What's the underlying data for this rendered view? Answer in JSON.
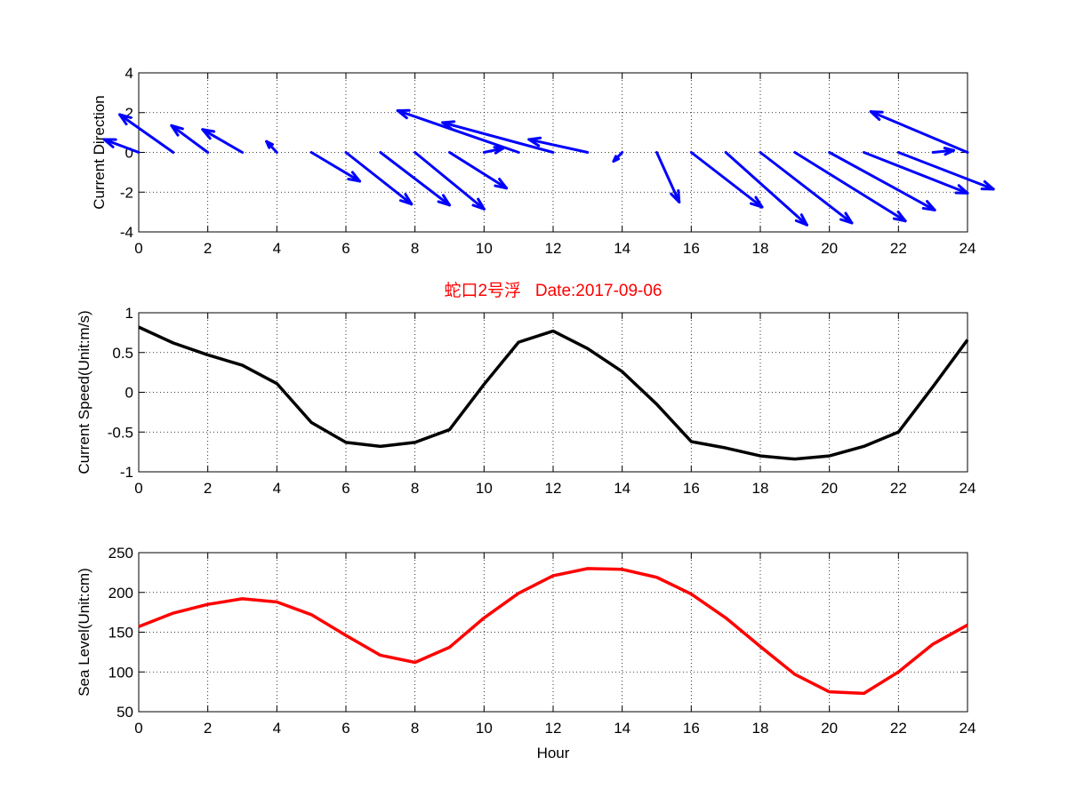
{
  "figure": {
    "title": "蛇口2号浮   Date:2017-09-06",
    "colors": {
      "title": "#ff0000",
      "quiver": "#0000ff",
      "speed": "#000000",
      "level": "#ff0000"
    }
  },
  "chart_data": [
    {
      "type": "quiver",
      "ylabel": "Current Direction",
      "xlabel": "",
      "xlim": [
        0,
        24
      ],
      "ylim": [
        -4,
        4
      ],
      "xticks": [
        0,
        2,
        4,
        6,
        8,
        10,
        12,
        14,
        16,
        18,
        20,
        22,
        24
      ],
      "yticks": [
        -4,
        -2,
        0,
        2,
        4
      ],
      "grid": true,
      "color": "#0000ff",
      "x": [
        0,
        1,
        2,
        3,
        4,
        5,
        6,
        7,
        8,
        9,
        10,
        11,
        12,
        13,
        14,
        15,
        16,
        17,
        18,
        19,
        20,
        21,
        22,
        23,
        24
      ],
      "u": [
        -1.0,
        -1.55,
        -1.05,
        -1.15,
        -0.3,
        1.4,
        1.9,
        2.0,
        2.0,
        1.65,
        0.55,
        -3.5,
        -3.2,
        -1.7,
        -0.25,
        0.65,
        2.05,
        2.35,
        2.65,
        3.2,
        3.05,
        3.0,
        2.75,
        0.6,
        -2.8
      ],
      "v": [
        0.65,
        1.9,
        1.35,
        1.15,
        0.55,
        -1.45,
        -2.6,
        -2.65,
        -2.85,
        -1.8,
        0.2,
        2.1,
        1.5,
        0.65,
        -0.45,
        -2.5,
        -2.75,
        -3.65,
        -3.55,
        -3.45,
        -2.9,
        -2.05,
        -1.85,
        0.1,
        2.05
      ]
    },
    {
      "type": "line",
      "ylabel": "Current Speed(Unit:m/s)",
      "xlabel": "",
      "xlim": [
        0,
        24
      ],
      "ylim": [
        -1,
        1
      ],
      "xticks": [
        0,
        2,
        4,
        6,
        8,
        10,
        12,
        14,
        16,
        18,
        20,
        22,
        24
      ],
      "yticks": [
        -1,
        -0.5,
        0,
        0.5,
        1
      ],
      "grid": true,
      "color": "#000000",
      "x": [
        0,
        1,
        2,
        3,
        4,
        5,
        6,
        7,
        8,
        9,
        10,
        11,
        12,
        13,
        14,
        15,
        16,
        17,
        18,
        19,
        20,
        21,
        22,
        23,
        24
      ],
      "y": [
        0.82,
        0.62,
        0.47,
        0.34,
        0.11,
        -0.38,
        -0.63,
        -0.68,
        -0.63,
        -0.47,
        0.1,
        0.63,
        0.77,
        0.55,
        0.26,
        -0.15,
        -0.62,
        -0.7,
        -0.8,
        -0.84,
        -0.8,
        -0.68,
        -0.5,
        0.07,
        0.66
      ]
    },
    {
      "type": "line",
      "ylabel": "Sea Level(Unit:cm)",
      "xlabel": "Hour",
      "xlim": [
        0,
        24
      ],
      "ylim": [
        50,
        250
      ],
      "xticks": [
        0,
        2,
        4,
        6,
        8,
        10,
        12,
        14,
        16,
        18,
        20,
        22,
        24
      ],
      "yticks": [
        50,
        100,
        150,
        200,
        250
      ],
      "grid": true,
      "color": "#ff0000",
      "x": [
        0,
        1,
        2,
        3,
        4,
        5,
        6,
        7,
        8,
        9,
        10,
        11,
        12,
        13,
        14,
        15,
        16,
        17,
        18,
        19,
        20,
        21,
        22,
        23,
        24
      ],
      "y": [
        157,
        174,
        185,
        192,
        188,
        172,
        146,
        121,
        112,
        131,
        168,
        199,
        221,
        230,
        229,
        219,
        198,
        168,
        132,
        97,
        75,
        73,
        100,
        135,
        159
      ]
    }
  ]
}
